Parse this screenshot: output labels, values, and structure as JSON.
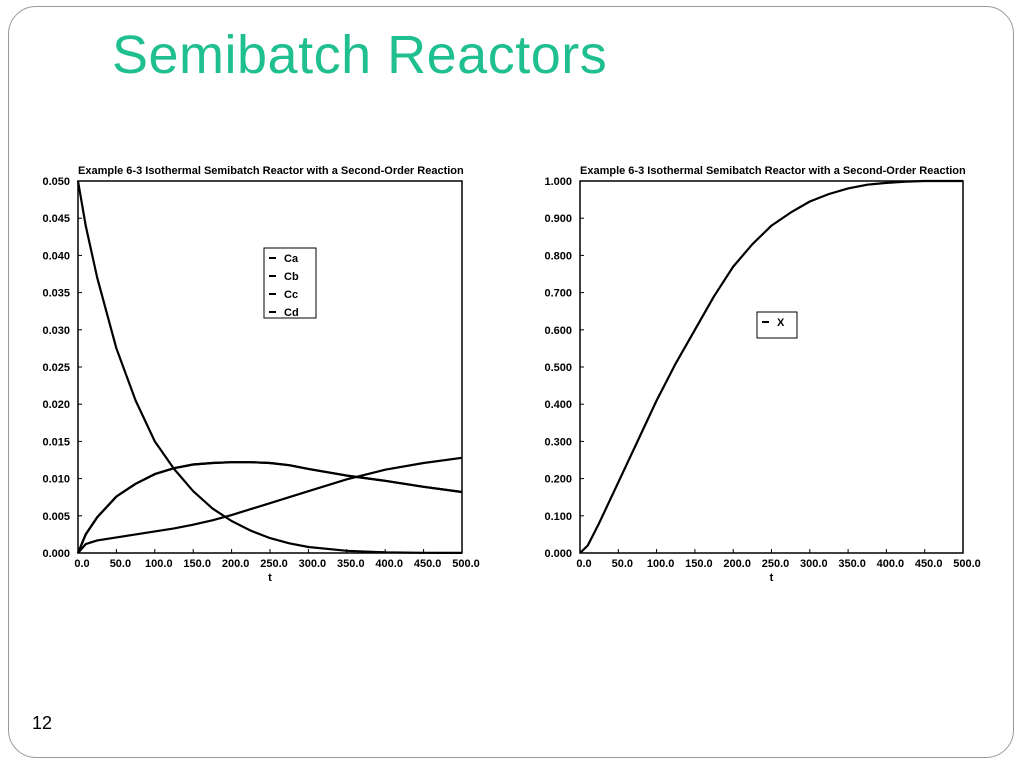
{
  "slide": {
    "title": "Semibatch Reactors",
    "page_number": "12",
    "title_color": "#1fbf8f"
  },
  "chart_data": [
    {
      "type": "line",
      "title": "Example 6-3 Isothermal Semibatch Reactor with a Second-Order Reaction",
      "xlabel": "t",
      "ylabel": "",
      "xlim": [
        0,
        500
      ],
      "ylim": [
        0,
        0.05
      ],
      "x_ticks": [
        "0.0",
        "50.0",
        "100.0",
        "150.0",
        "200.0",
        "250.0",
        "300.0",
        "350.0",
        "400.0",
        "450.0",
        "500.0"
      ],
      "y_ticks": [
        "0.000",
        "0.005",
        "0.010",
        "0.015",
        "0.020",
        "0.025",
        "0.030",
        "0.035",
        "0.040",
        "0.045",
        "0.050"
      ],
      "grid": false,
      "legend_position": "upper-middle",
      "x": [
        0,
        10,
        25,
        50,
        75,
        100,
        125,
        150,
        175,
        200,
        225,
        250,
        275,
        300,
        350,
        400,
        450,
        500
      ],
      "series": [
        {
          "name": "Ca",
          "values": [
            0.05,
            0.044,
            0.037,
            0.0275,
            0.0205,
            0.015,
            0.0113,
            0.0083,
            0.006,
            0.0043,
            0.003,
            0.002,
            0.0013,
            0.0008,
            0.0003,
            0.0001,
            3e-05,
            1e-05
          ]
        },
        {
          "name": "Cb",
          "values": [
            0.0,
            0.0012,
            0.0017,
            0.0021,
            0.0025,
            0.0029,
            0.0033,
            0.0038,
            0.0044,
            0.0051,
            0.0059,
            0.0067,
            0.0075,
            0.0083,
            0.0099,
            0.0112,
            0.0121,
            0.0128
          ]
        },
        {
          "name": "Cc",
          "values": [
            0.0,
            0.0025,
            0.0048,
            0.0076,
            0.0093,
            0.0106,
            0.0114,
            0.0119,
            0.0121,
            0.0122,
            0.0122,
            0.0121,
            0.0118,
            0.0113,
            0.0104,
            0.0097,
            0.0089,
            0.0082
          ]
        },
        {
          "name": "Cd",
          "values": [
            0.0,
            0.0025,
            0.0048,
            0.0076,
            0.0093,
            0.0106,
            0.0114,
            0.0119,
            0.0121,
            0.0122,
            0.0122,
            0.0121,
            0.0118,
            0.0113,
            0.0104,
            0.0097,
            0.0089,
            0.0082
          ]
        }
      ]
    },
    {
      "type": "line",
      "title": "Example 6-3 Isothermal Semibatch Reactor with a Second-Order Reaction",
      "xlabel": "t",
      "ylabel": "",
      "xlim": [
        0,
        500
      ],
      "ylim": [
        0,
        1.0
      ],
      "x_ticks": [
        "0.0",
        "50.0",
        "100.0",
        "150.0",
        "200.0",
        "250.0",
        "300.0",
        "350.0",
        "400.0",
        "450.0",
        "500.0"
      ],
      "y_ticks": [
        "0.000",
        "0.100",
        "0.200",
        "0.300",
        "0.400",
        "0.500",
        "0.600",
        "0.700",
        "0.800",
        "0.900",
        "1.000"
      ],
      "grid": false,
      "legend_position": "middle-right",
      "x": [
        0,
        10,
        25,
        50,
        75,
        100,
        125,
        150,
        175,
        200,
        225,
        250,
        275,
        300,
        325,
        350,
        375,
        400,
        425,
        450,
        475,
        500
      ],
      "series": [
        {
          "name": "X",
          "values": [
            0.0,
            0.02,
            0.08,
            0.19,
            0.3,
            0.41,
            0.51,
            0.6,
            0.69,
            0.77,
            0.83,
            0.88,
            0.915,
            0.945,
            0.965,
            0.98,
            0.99,
            0.995,
            0.998,
            1.0,
            1.0,
            1.0
          ]
        }
      ]
    }
  ]
}
